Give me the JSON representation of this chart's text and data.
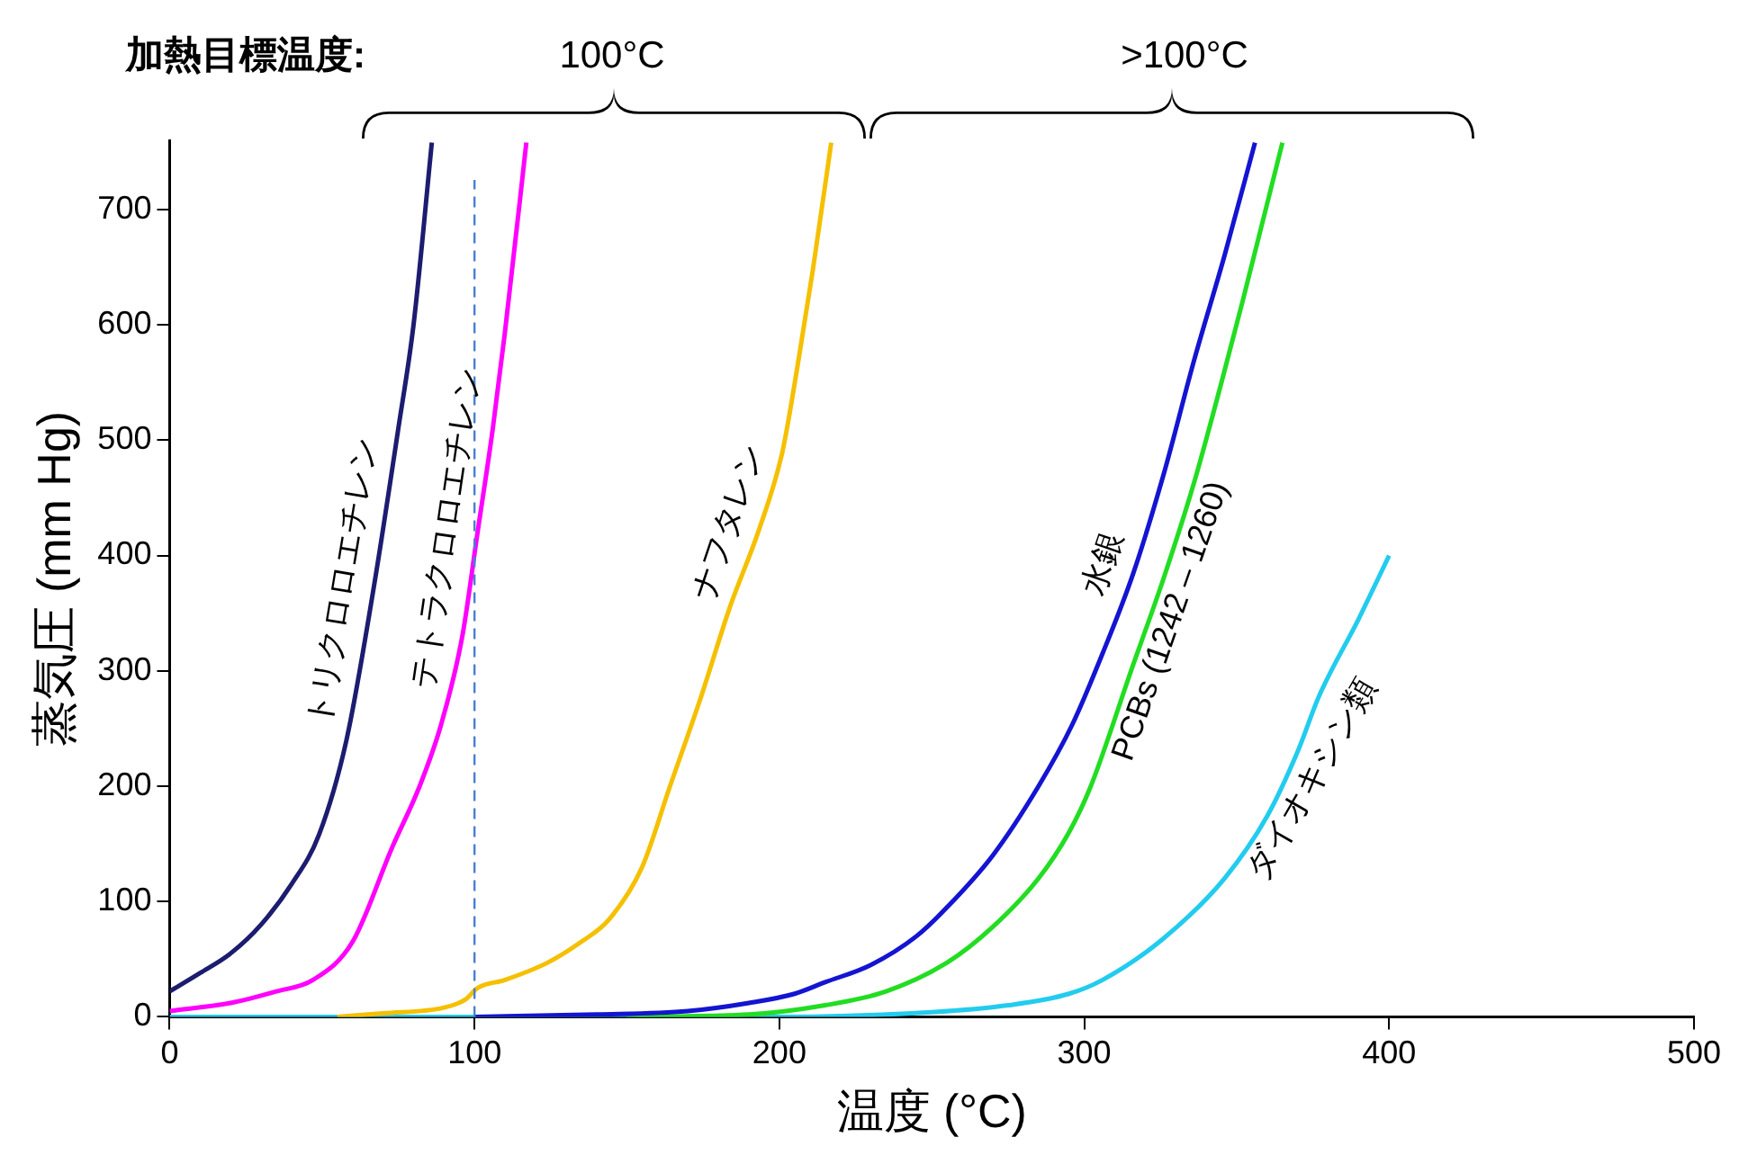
{
  "chart_data": {
    "type": "line",
    "xlabel": "温度 (°C)",
    "ylabel": "蒸気圧 (mm Hg)",
    "xlim": [
      0,
      500
    ],
    "xticks": [
      0,
      100,
      200,
      300,
      400,
      500
    ],
    "ylim": [
      0,
      760
    ],
    "yticks": [
      0,
      100,
      200,
      300,
      400,
      500,
      600,
      700
    ],
    "grid": false,
    "legend": false,
    "marker": "none",
    "line_style": "solid",
    "annotations": [
      "加熱目標温度:",
      "100°C",
      ">100°C"
    ],
    "ref_lines": [
      {
        "axis": "x",
        "value": 100,
        "label": null,
        "color": "#4a7fd0",
        "line_style": "dashed"
      }
    ],
    "series": [
      {
        "name": "トリクロロエチレン",
        "color": "#1c1c70",
        "x": [
          0,
          10,
          20,
          30,
          40,
          49,
          58,
          67,
          75,
          80,
          86
        ],
        "values": [
          22,
          38,
          55,
          80,
          115,
          158,
          240,
          373,
          510,
          600,
          758
        ]
      },
      {
        "name": "テトラクロロエチレン",
        "color": "#ff00ff",
        "x": [
          0,
          20,
          35,
          47,
          60,
          73,
          82,
          89,
          96,
          101,
          106,
          110,
          117
        ],
        "values": [
          5,
          12,
          22,
          32,
          65,
          147,
          200,
          253,
          330,
          420,
          510,
          594,
          758
        ]
      },
      {
        "name": "ナフタレン",
        "color": "#f5c000",
        "x": [
          55,
          70,
          90,
          97,
          101,
          110,
          124,
          135,
          144,
          155,
          164,
          174,
          184,
          193,
          201,
          206,
          211,
          217
        ],
        "values": [
          0,
          3,
          8,
          15,
          25,
          32,
          47,
          65,
          84,
          130,
          199,
          275,
          357,
          420,
          490,
          565,
          648,
          758
        ]
      },
      {
        "name": "水銀",
        "color": "#1414d2",
        "x": [
          100,
          140,
          170,
          190,
          205,
          215,
          230,
          245,
          255,
          270,
          285,
          296,
          306,
          316,
          326,
          336,
          346,
          356
        ],
        "values": [
          0,
          2,
          5,
          12,
          20,
          30,
          45,
          70,
          95,
          140,
          200,
          253,
          315,
          384,
          470,
          569,
          660,
          758
        ]
      },
      {
        "name": "PCBs (1242 – 1260)",
        "color": "#22dd22",
        "x": [
          150,
          190,
          215,
          235,
          255,
          270,
          285,
          295,
          302,
          316,
          326,
          336,
          345,
          352,
          365
        ],
        "values": [
          0,
          2,
          10,
          22,
          47,
          78,
          120,
          160,
          199,
          305,
          380,
          463,
          550,
          621,
          758
        ]
      },
      {
        "name": "ダイオキシン類",
        "color": "#22ccee",
        "x": [
          0,
          200,
          250,
          275,
          295,
          306,
          326,
          346,
          360,
          370,
          377,
          390,
          400
        ],
        "values": [
          0,
          0,
          4,
          10,
          20,
          32,
          68,
          120,
          174,
          230,
          278,
          345,
          400
        ]
      }
    ]
  }
}
